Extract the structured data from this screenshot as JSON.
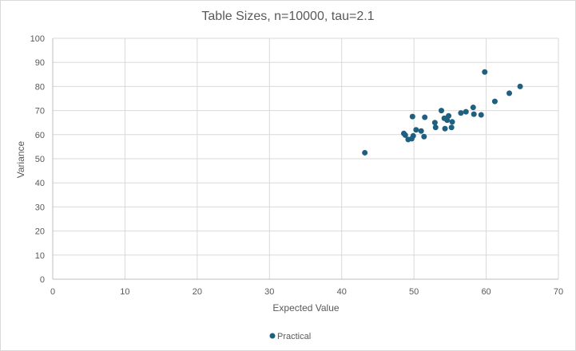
{
  "chart_data": {
    "type": "scatter",
    "title": "Table Sizes, n=10000, tau=2.1",
    "xlabel": "Expected Value",
    "ylabel": "Variance",
    "xlim": [
      0,
      70
    ],
    "ylim": [
      0,
      100
    ],
    "x_ticks": [
      "0",
      "10",
      "20",
      "30",
      "40",
      "50",
      "60",
      "70"
    ],
    "y_ticks": [
      "0",
      "10",
      "20",
      "30",
      "40",
      "50",
      "60",
      "70",
      "80",
      "90",
      "100"
    ],
    "grid": true,
    "legend_position": "bottom",
    "colors": {
      "series": "#1f5f7f",
      "grid": "#d9d9d9",
      "axis": "#bfbfbf"
    },
    "series": [
      {
        "name": "Practical",
        "points": [
          [
            43.2,
            52.5
          ],
          [
            48.6,
            60.5
          ],
          [
            48.8,
            59.8
          ],
          [
            49.2,
            58.0
          ],
          [
            49.7,
            58.3
          ],
          [
            49.9,
            59.5
          ],
          [
            49.8,
            67.5
          ],
          [
            50.3,
            62.0
          ],
          [
            51.0,
            61.5
          ],
          [
            51.4,
            59.2
          ],
          [
            51.5,
            67.2
          ],
          [
            52.9,
            65.0
          ],
          [
            53.0,
            63.0
          ],
          [
            53.8,
            70.0
          ],
          [
            54.2,
            66.8
          ],
          [
            54.3,
            62.5
          ],
          [
            54.6,
            66.0
          ],
          [
            54.8,
            67.8
          ],
          [
            55.3,
            65.3
          ],
          [
            55.2,
            63.0
          ],
          [
            56.5,
            69.0
          ],
          [
            57.2,
            69.5
          ],
          [
            58.2,
            71.3
          ],
          [
            58.3,
            68.5
          ],
          [
            59.3,
            68.2
          ],
          [
            59.8,
            86.0
          ],
          [
            61.2,
            73.8
          ],
          [
            63.2,
            77.2
          ],
          [
            64.7,
            80.0
          ]
        ]
      }
    ]
  }
}
